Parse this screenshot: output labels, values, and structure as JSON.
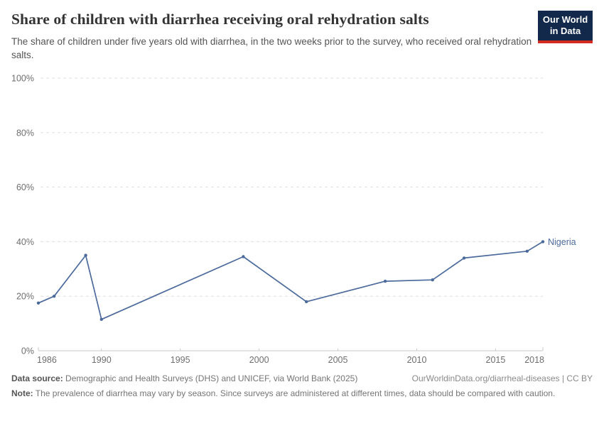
{
  "header": {
    "title": "Share of children with diarrhea receiving oral rehydration salts",
    "subtitle": "The share of children under five years old with diarrhea, in the two weeks prior to the survey, who received oral rehydration salts.",
    "logo": {
      "line1": "Our World",
      "line2": "in Data",
      "bg_color": "#12294b",
      "accent_color": "#d42b21"
    }
  },
  "chart_data": {
    "type": "line",
    "title": "Share of children with diarrhea receiving oral rehydration salts",
    "xlabel": "",
    "ylabel": "",
    "xlim": [
      1986,
      2018
    ],
    "ylim": [
      0,
      100
    ],
    "x_ticks": [
      1986,
      1990,
      1995,
      2000,
      2005,
      2010,
      2015,
      2018
    ],
    "y_ticks": [
      0,
      20,
      40,
      60,
      80,
      100
    ],
    "y_tick_suffix": "%",
    "grid": "horizontal-dashed",
    "legend_position": "end-of-line-label",
    "series": [
      {
        "name": "Nigeria",
        "color": "#4C6A9C",
        "points": [
          [
            1986,
            17.5
          ],
          [
            1987,
            20
          ],
          [
            1989,
            35
          ],
          [
            1990,
            11.5
          ],
          [
            1999,
            34.5
          ],
          [
            2003,
            18
          ],
          [
            2008,
            25.5
          ],
          [
            2011,
            26
          ],
          [
            2013,
            34
          ],
          [
            2017,
            36.5
          ],
          [
            2018,
            40
          ]
        ]
      }
    ]
  },
  "footer": {
    "source_label": "Data source:",
    "source_text": "Demographic and Health Surveys (DHS) and UNICEF, via World Bank (2025)",
    "attribution": "OurWorldinData.org/diarrheal-diseases | CC BY",
    "note_label": "Note:",
    "note_text": "The prevalence of diarrhea may vary by season. Since surveys are administered at different times, data should be compared with caution."
  }
}
